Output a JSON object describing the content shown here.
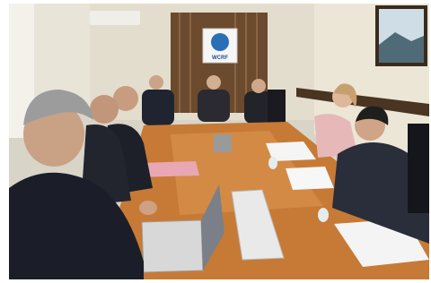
{
  "logo": {
    "text": "WCRF"
  }
}
